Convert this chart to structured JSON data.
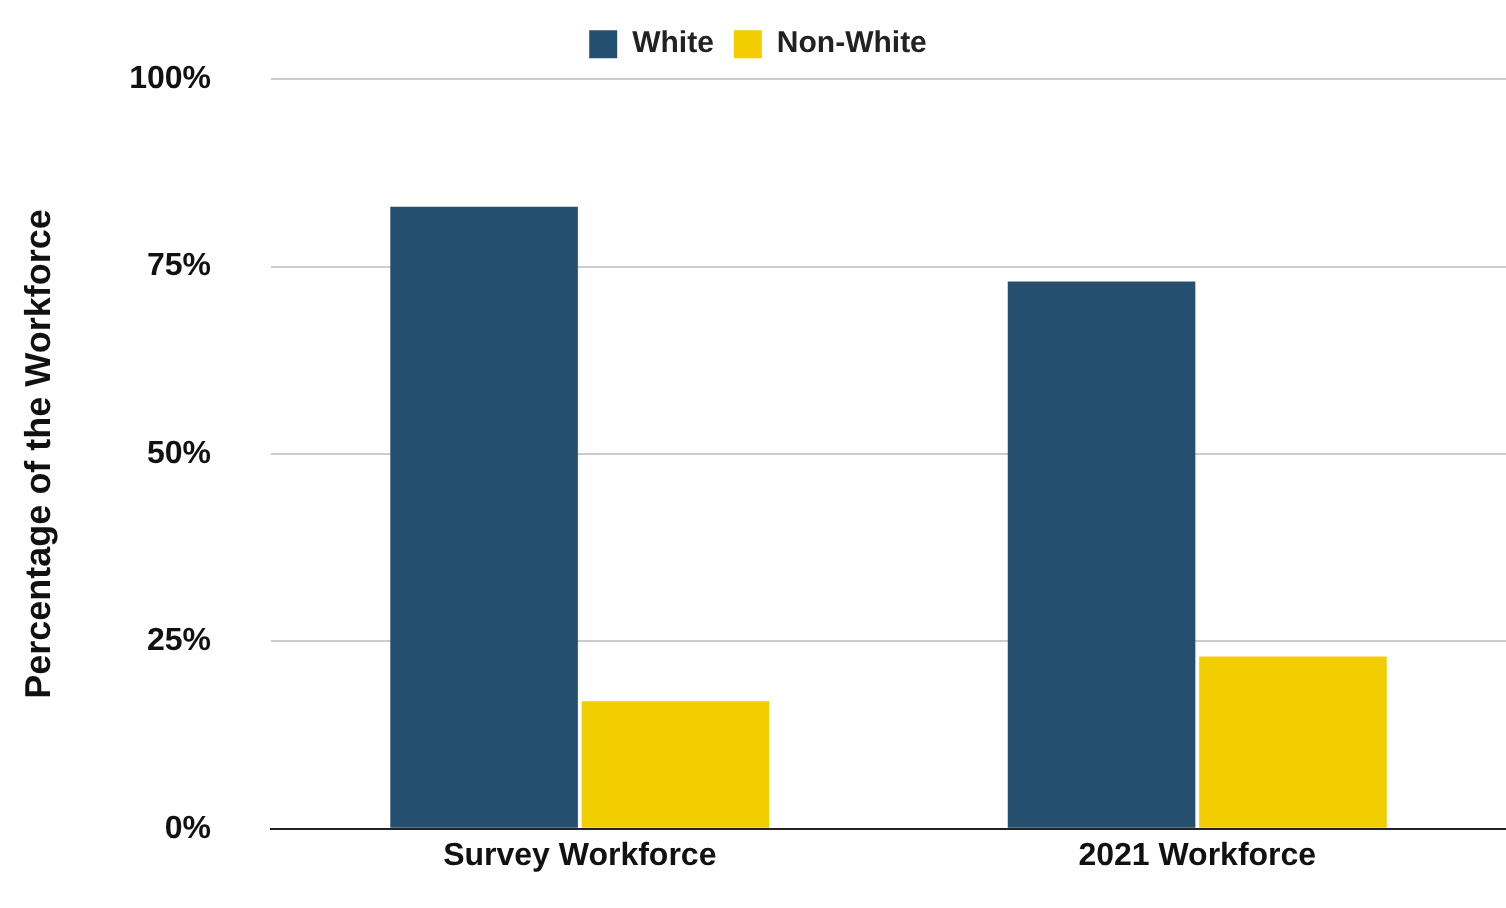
{
  "chart_data": {
    "type": "bar",
    "ylabel": "Percentage of the Workforce",
    "categories": [
      "Survey Workforce",
      "2021 Workforce"
    ],
    "series": [
      {
        "name": "White",
        "color": "#254f6f",
        "values": [
          83,
          73
        ]
      },
      {
        "name": "Non-White",
        "color": "#f2cd00",
        "values": [
          17,
          23
        ]
      }
    ],
    "ylim": [
      0,
      100
    ],
    "yticks": [
      {
        "value": 0,
        "label": "0%"
      },
      {
        "value": 25,
        "label": "25%"
      },
      {
        "value": 50,
        "label": "50%"
      },
      {
        "value": 75,
        "label": "75%"
      },
      {
        "value": 100,
        "label": "100%"
      }
    ],
    "grid": "y",
    "legend": "top"
  }
}
